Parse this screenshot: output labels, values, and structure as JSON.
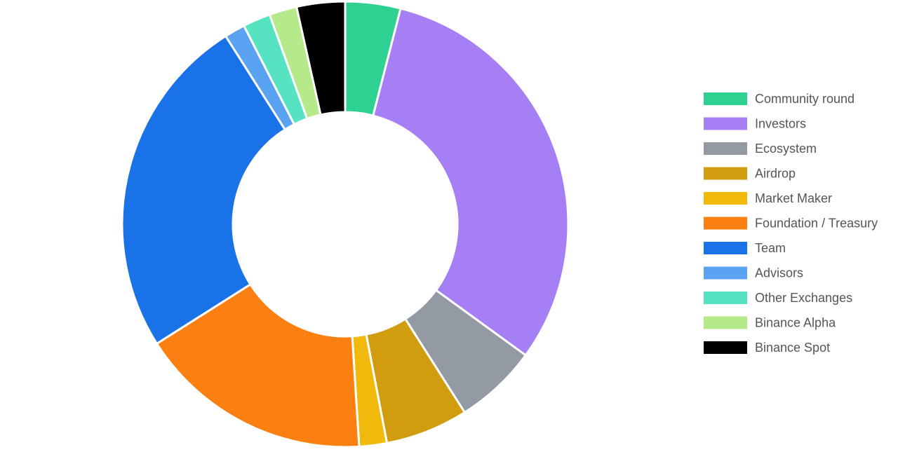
{
  "chart_data": {
    "type": "donut",
    "categories": [
      "Community round",
      "Investors",
      "Ecosystem",
      "Airdrop",
      "Market Maker",
      "Foundation / Treasury",
      "Team",
      "Advisors",
      "Other Exchanges",
      "Binance Alpha",
      "Binance Spot"
    ],
    "values": [
      4,
      31,
      6,
      6,
      2,
      17,
      25,
      1.5,
      2,
      2,
      3.5
    ],
    "colors": [
      "#2ed192",
      "#a77ff5",
      "#939aa4",
      "#d19c0f",
      "#f0b90b",
      "#fc7f12",
      "#1a72e8",
      "#5aa2f2",
      "#56e3c1",
      "#b6e98a",
      "#000000"
    ],
    "legend": "right"
  }
}
